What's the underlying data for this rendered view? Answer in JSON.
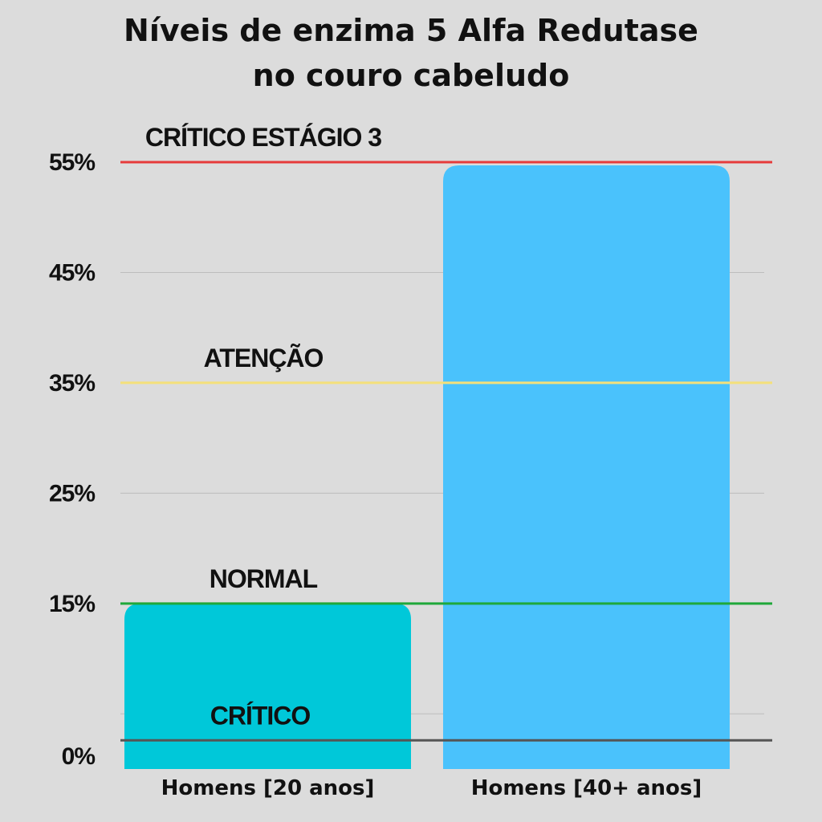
{
  "chart_data": {
    "type": "bar",
    "title_lines": [
      "Níveis de enzima 5 Alfa Redutase",
      "no couro cabeludo"
    ],
    "categories": [
      "Homens [20 anos]",
      "Homens [40+ anos]"
    ],
    "values": [
      15,
      55
    ],
    "bar_colors": [
      "#00c8d9",
      "#4ac2fc"
    ],
    "y_ticks": [
      {
        "value": 0,
        "label": "0%"
      },
      {
        "value": 15,
        "label": "15%"
      },
      {
        "value": 25,
        "label": "25%"
      },
      {
        "value": 35,
        "label": "35%"
      },
      {
        "value": 45,
        "label": "45%"
      },
      {
        "value": 55,
        "label": "55%"
      }
    ],
    "ylim": [
      0,
      55
    ],
    "grid": true,
    "reference_lines": [
      {
        "value": 55,
        "label": "CRÍTICO ESTÁGIO 3",
        "color": "#e63b3b"
      },
      {
        "value": 35,
        "label": "ATENÇÃO",
        "color": "#f4e07a"
      },
      {
        "value": 15,
        "label": "NORMAL",
        "color": "#1fa83a"
      },
      {
        "value": 2.6,
        "label": "CRÍTICO",
        "color": "#555555"
      }
    ]
  }
}
